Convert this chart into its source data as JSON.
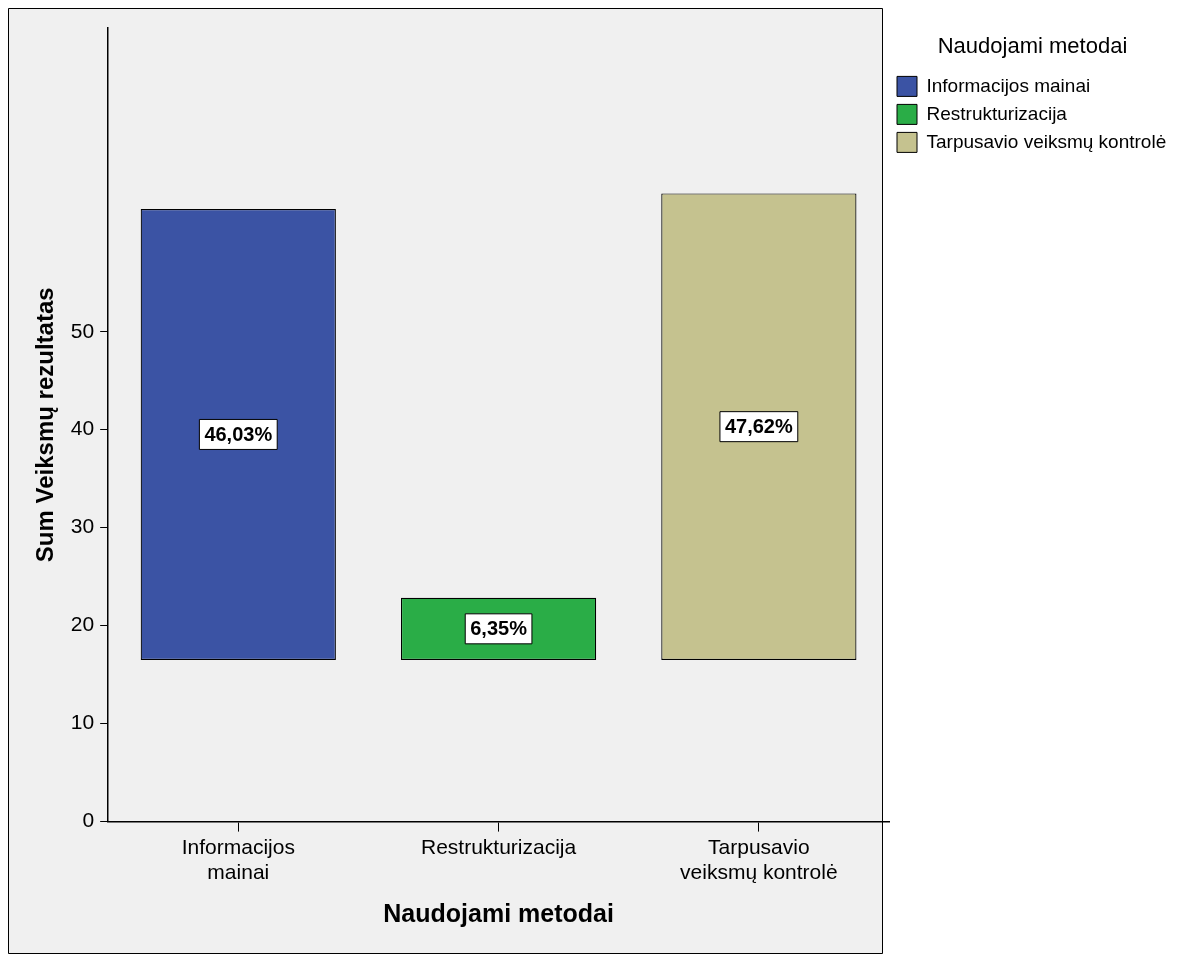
{
  "chart_data": {
    "type": "bar",
    "xlabel": "Naudojami metodai",
    "ylabel": "Sum Veiksmų rezultatas",
    "legend_title": "Naudojami metodai",
    "categories": [
      "Informacijos mainai",
      "Restrukturizacija",
      "Tarpusavio veiksmų kontrolė"
    ],
    "series": [
      {
        "name": "Informacijos mainai",
        "color": "#3b53a4",
        "values": [
          46.03,
          null,
          null
        ],
        "base": [
          16.5,
          null,
          null
        ],
        "value_labels": [
          "46,03%",
          null,
          null
        ]
      },
      {
        "name": "Restrukturizacija",
        "color": "#2aad47",
        "values": [
          null,
          6.35,
          null
        ],
        "base": [
          null,
          16.5,
          null
        ],
        "value_labels": [
          null,
          "6,35%",
          null
        ]
      },
      {
        "name": "Tarpusavio veiksmų kontrolė",
        "color": "#c5c28f",
        "values": [
          null,
          null,
          47.62
        ],
        "base": [
          null,
          null,
          16.5
        ],
        "value_labels": [
          null,
          null,
          "47,62%"
        ]
      }
    ],
    "ylim": [
      0,
      81
    ],
    "yticks": [
      0,
      10,
      20,
      30,
      40,
      50
    ],
    "grid": false,
    "legend": "top right"
  }
}
